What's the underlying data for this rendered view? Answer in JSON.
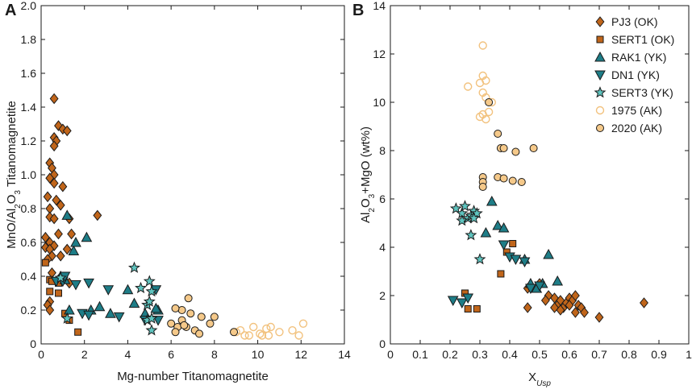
{
  "colors": {
    "ok_fill": "#c0651a",
    "yk_fill": "#1e7d87",
    "yk_star_fill": "#5fc4bf",
    "ak2020_fill": "#f5c98a",
    "ak1975_stroke": "#f2c27e",
    "stroke": "#1a1a1a"
  },
  "chart_data": [
    {
      "type": "scatter",
      "panel_label": "A",
      "xlabel_main": "Mg-number Titanomagnetite",
      "ylabel_parts": [
        "MnO/Al",
        "2",
        "O",
        "3",
        " Titanomagnetite"
      ],
      "xlim": [
        0,
        14
      ],
      "ylim": [
        0,
        2.0
      ],
      "x_ticks": [
        "0",
        "2",
        "4",
        "6",
        "8",
        "10",
        "12",
        "14"
      ],
      "y_ticks": [
        "0",
        "0.2",
        "0.4",
        "0.6",
        "0.8",
        "1.0",
        "1.2",
        "1.4",
        "1.6",
        "1.8",
        "2.0"
      ],
      "series": [
        {
          "name": "PJ3 (OK)",
          "marker": "diamond",
          "points": [
            [
              0.6,
              1.45
            ],
            [
              0.8,
              1.29
            ],
            [
              1.0,
              1.27
            ],
            [
              1.2,
              1.26
            ],
            [
              0.6,
              1.22
            ],
            [
              0.7,
              1.2
            ],
            [
              0.6,
              1.17
            ],
            [
              0.4,
              1.07
            ],
            [
              0.5,
              1.04
            ],
            [
              0.6,
              1.0
            ],
            [
              0.4,
              0.98
            ],
            [
              0.6,
              0.95
            ],
            [
              1.0,
              0.93
            ],
            [
              0.3,
              0.87
            ],
            [
              0.7,
              0.85
            ],
            [
              0.4,
              0.8
            ],
            [
              0.9,
              0.82
            ],
            [
              0.4,
              0.75
            ],
            [
              0.6,
              0.74
            ],
            [
              1.3,
              0.74
            ],
            [
              2.6,
              0.76
            ],
            [
              0.2,
              0.63
            ],
            [
              0.8,
              0.65
            ],
            [
              1.4,
              0.65
            ],
            [
              0.4,
              0.6
            ],
            [
              0.6,
              0.58
            ],
            [
              0.2,
              0.57
            ],
            [
              0.4,
              0.56
            ],
            [
              1.2,
              0.56
            ],
            [
              0.5,
              0.52
            ],
            [
              0.9,
              0.52
            ],
            [
              0.3,
              0.5
            ],
            [
              0.5,
              0.42
            ],
            [
              0.8,
              0.38
            ],
            [
              1.3,
              0.36
            ],
            [
              0.4,
              0.25
            ],
            [
              0.3,
              0.23
            ],
            [
              0.4,
              0.2
            ]
          ]
        },
        {
          "name": "SERT1 (OK)",
          "marker": "square",
          "points": [
            [
              0.2,
              0.48
            ],
            [
              0.4,
              0.38
            ],
            [
              0.5,
              0.37
            ],
            [
              0.8,
              0.36
            ],
            [
              0.4,
              0.31
            ],
            [
              0.8,
              0.3
            ],
            [
              1.3,
              0.14
            ],
            [
              1.7,
              0.07
            ],
            [
              1.1,
              0.18
            ]
          ]
        },
        {
          "name": "RAK1 (YK)",
          "marker": "triangle-up",
          "points": [
            [
              1.2,
              0.76
            ],
            [
              2.1,
              0.63
            ],
            [
              1.5,
              0.55
            ],
            [
              1.6,
              0.6
            ],
            [
              0.9,
              0.4
            ],
            [
              1.1,
              0.38
            ],
            [
              1.3,
              0.2
            ],
            [
              2.3,
              0.2
            ],
            [
              2.7,
              0.22
            ],
            [
              4.0,
              0.32
            ],
            [
              4.3,
              0.24
            ],
            [
              5.4,
              0.2
            ],
            [
              5.3,
              0.21
            ],
            [
              3.2,
              0.18
            ],
            [
              4.8,
              0.18
            ]
          ]
        },
        {
          "name": "DN1 (YK)",
          "marker": "triangle-down",
          "points": [
            [
              0.7,
              0.37
            ],
            [
              1.0,
              0.37
            ],
            [
              1.1,
              0.4
            ],
            [
              1.6,
              0.35
            ],
            [
              2.2,
              0.36
            ],
            [
              3.1,
              0.32
            ],
            [
              1.9,
              0.18
            ],
            [
              2.2,
              0.17
            ],
            [
              3.6,
              0.16
            ],
            [
              5.3,
              0.32
            ],
            [
              4.8,
              0.14
            ],
            [
              5.4,
              0.14
            ]
          ]
        },
        {
          "name": "SERT3 (YK)",
          "marker": "star",
          "points": [
            [
              4.3,
              0.45
            ],
            [
              4.6,
              0.33
            ],
            [
              5.0,
              0.37
            ],
            [
              5.1,
              0.31
            ],
            [
              4.9,
              0.23
            ],
            [
              5.0,
              0.25
            ],
            [
              4.9,
              0.14
            ],
            [
              5.1,
              0.15
            ],
            [
              5.1,
              0.08
            ],
            [
              1.2,
              0.15
            ],
            [
              0.9,
              0.39
            ]
          ]
        },
        {
          "name": "1975 (AK)",
          "marker": "circle-open",
          "points": [
            [
              9.0,
              0.07
            ],
            [
              9.4,
              0.05
            ],
            [
              9.8,
              0.1
            ],
            [
              9.6,
              0.05
            ],
            [
              10.1,
              0.06
            ],
            [
              10.4,
              0.09
            ],
            [
              10.5,
              0.05
            ],
            [
              10.6,
              0.1
            ],
            [
              11.0,
              0.07
            ],
            [
              11.6,
              0.08
            ],
            [
              11.9,
              0.05
            ],
            [
              12.1,
              0.12
            ],
            [
              10.2,
              0.05
            ],
            [
              9.2,
              0.08
            ]
          ]
        },
        {
          "name": "2020 (AK)",
          "marker": "circle",
          "points": [
            [
              6.8,
              0.27
            ],
            [
              6.5,
              0.2
            ],
            [
              6.9,
              0.18
            ],
            [
              7.4,
              0.16
            ],
            [
              8.0,
              0.16
            ],
            [
              6.2,
              0.21
            ],
            [
              6.5,
              0.14
            ],
            [
              6.7,
              0.1
            ],
            [
              6.0,
              0.12
            ],
            [
              6.3,
              0.1
            ],
            [
              7.1,
              0.08
            ],
            [
              7.3,
              0.06
            ],
            [
              7.8,
              0.12
            ],
            [
              8.9,
              0.07
            ],
            [
              6.2,
              0.07
            ],
            [
              6.6,
              0.11
            ]
          ]
        }
      ]
    },
    {
      "type": "scatter",
      "panel_label": "B",
      "xlabel_parts": [
        "X",
        "Usp"
      ],
      "ylabel_parts": [
        "Al",
        "2",
        "O",
        "3",
        "+MgO (wt%)"
      ],
      "xlim": [
        0,
        1
      ],
      "ylim": [
        0,
        14
      ],
      "x_ticks": [
        "0",
        "0.1",
        "0.2",
        "0.3",
        "0.4",
        "0.5",
        "0.6",
        "0.7",
        "0.8",
        "0.9",
        "1"
      ],
      "y_ticks": [
        "0",
        "2",
        "4",
        "6",
        "8",
        "10",
        "12",
        "14"
      ],
      "series": [
        {
          "name": "PJ3 (OK)",
          "marker": "diamond",
          "points": [
            [
              0.46,
              2.3
            ],
            [
              0.5,
              2.5
            ],
            [
              0.53,
              2.0
            ],
            [
              0.55,
              1.9
            ],
            [
              0.56,
              1.6
            ],
            [
              0.57,
              1.8
            ],
            [
              0.58,
              1.5
            ],
            [
              0.59,
              1.7
            ],
            [
              0.6,
              1.9
            ],
            [
              0.61,
              1.8
            ],
            [
              0.62,
              2.0
            ],
            [
              0.63,
              1.6
            ],
            [
              0.64,
              1.5
            ],
            [
              0.65,
              1.3
            ],
            [
              0.46,
              1.5
            ],
            [
              0.52,
              1.8
            ],
            [
              0.55,
              1.5
            ],
            [
              0.6,
              1.6
            ],
            [
              0.62,
              1.3
            ],
            [
              0.7,
              1.1
            ],
            [
              0.85,
              1.7
            ],
            [
              0.57,
              1.4
            ]
          ]
        },
        {
          "name": "SERT1 (OK)",
          "marker": "square",
          "points": [
            [
              0.37,
              2.9
            ],
            [
              0.39,
              3.8
            ],
            [
              0.41,
              4.15
            ],
            [
              0.26,
              1.45
            ],
            [
              0.29,
              1.45
            ],
            [
              0.25,
              2.1
            ]
          ]
        },
        {
          "name": "RAK1 (YK)",
          "marker": "triangle-up",
          "points": [
            [
              0.34,
              5.9
            ],
            [
              0.36,
              4.9
            ],
            [
              0.38,
              4.8
            ],
            [
              0.32,
              4.6
            ],
            [
              0.45,
              3.5
            ],
            [
              0.53,
              3.7
            ],
            [
              0.47,
              2.5
            ],
            [
              0.51,
              2.5
            ],
            [
              0.56,
              2.6
            ],
            [
              0.49,
              2.3
            ]
          ]
        },
        {
          "name": "DN1 (YK)",
          "marker": "triangle-down",
          "points": [
            [
              0.38,
              4.1
            ],
            [
              0.4,
              3.6
            ],
            [
              0.42,
              3.5
            ],
            [
              0.45,
              3.4
            ],
            [
              0.21,
              1.8
            ],
            [
              0.24,
              1.7
            ],
            [
              0.26,
              1.9
            ],
            [
              0.47,
              2.3
            ],
            [
              0.5,
              2.4
            ]
          ]
        },
        {
          "name": "SERT3 (YK)",
          "marker": "star",
          "points": [
            [
              0.22,
              5.6
            ],
            [
              0.24,
              5.4
            ],
            [
              0.25,
              5.7
            ],
            [
              0.26,
              5.2
            ],
            [
              0.27,
              5.3
            ],
            [
              0.28,
              5.5
            ],
            [
              0.29,
              5.4
            ],
            [
              0.3,
              3.5
            ],
            [
              0.27,
              4.5
            ],
            [
              0.24,
              5.1
            ],
            [
              0.28,
              5.2
            ]
          ]
        },
        {
          "name": "1975 (AK)",
          "marker": "circle-open",
          "points": [
            [
              0.31,
              12.35
            ],
            [
              0.31,
              11.1
            ],
            [
              0.32,
              10.9
            ],
            [
              0.3,
              10.8
            ],
            [
              0.26,
              10.65
            ],
            [
              0.31,
              10.4
            ],
            [
              0.32,
              10.2
            ],
            [
              0.34,
              10.0
            ],
            [
              0.33,
              9.6
            ],
            [
              0.3,
              9.4
            ],
            [
              0.32,
              9.3
            ],
            [
              0.31,
              9.5
            ]
          ]
        },
        {
          "name": "2020 (AK)",
          "marker": "circle",
          "points": [
            [
              0.36,
              8.7
            ],
            [
              0.37,
              8.1
            ],
            [
              0.38,
              8.1
            ],
            [
              0.42,
              7.95
            ],
            [
              0.48,
              8.1
            ],
            [
              0.36,
              6.9
            ],
            [
              0.38,
              6.85
            ],
            [
              0.41,
              6.75
            ],
            [
              0.44,
              6.7
            ],
            [
              0.31,
              6.9
            ],
            [
              0.31,
              6.7
            ],
            [
              0.31,
              6.5
            ],
            [
              0.33,
              10.0
            ]
          ]
        }
      ]
    }
  ],
  "legend": [
    {
      "label": "PJ3 (OK)",
      "marker": "diamond"
    },
    {
      "label": "SERT1 (OK)",
      "marker": "square"
    },
    {
      "label": "RAK1 (YK)",
      "marker": "triangle-up"
    },
    {
      "label": "DN1 (YK)",
      "marker": "triangle-down"
    },
    {
      "label": "SERT3 (YK)",
      "marker": "star"
    },
    {
      "label": "1975 (AK)",
      "marker": "circle-open"
    },
    {
      "label": "2020 (AK)",
      "marker": "circle"
    }
  ]
}
